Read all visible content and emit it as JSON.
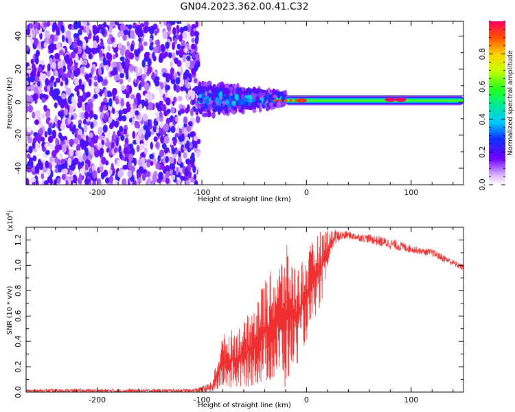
{
  "title": "GN04.2023.362.00.41.C32",
  "chart_data": [
    {
      "type": "heatmap",
      "name": "spectrogram",
      "xlabel": "Height of straight line (km)",
      "ylabel": "Frequency (Hz)",
      "xlim": [
        -268,
        150
      ],
      "ylim": [
        -50,
        49
      ],
      "xticks": [
        -200,
        -100,
        0,
        100
      ],
      "yticks": [
        -40,
        -20,
        0,
        20,
        40
      ],
      "xtick_labels": [
        "-200",
        "-100",
        "0",
        "100"
      ],
      "ytick_labels": [
        "-40",
        "-20",
        "0",
        "20",
        "40"
      ],
      "colorbar": {
        "label": "Normalized spectral amplitude",
        "range": [
          0,
          1
        ],
        "ticks": [
          0,
          0.2,
          0.4,
          0.6,
          0.8
        ],
        "tick_labels": [
          "0.0",
          "0.2",
          "0.4",
          "0.6",
          "0.8"
        ],
        "colormap": "rainbow"
      },
      "regions": [
        {
          "x": [
            -268,
            -103
          ],
          "freq": [
            -50,
            49
          ],
          "amplitude": [
            0.02,
            0.25
          ],
          "pattern": "broadband noise"
        },
        {
          "x": [
            -103,
            -20
          ],
          "freq": [
            -12,
            12
          ],
          "amplitude": [
            0.1,
            0.5
          ],
          "pattern": "narrowing band"
        },
        {
          "x": [
            -20,
            150
          ],
          "freq": [
            -2,
            3
          ],
          "amplitude": [
            0.4,
            1.0
          ],
          "pattern": "carrier line"
        }
      ],
      "peaks": [
        {
          "x": -5,
          "freq": 1,
          "amplitude": 0.95
        },
        {
          "x": 80,
          "freq": 1.5,
          "amplitude": 1.0
        },
        {
          "x": 90,
          "freq": 1.5,
          "amplitude": 1.0
        }
      ]
    },
    {
      "type": "line",
      "name": "snr",
      "xlabel": "Height of straight line (km)",
      "ylabel": "SNR (10 * v/v)",
      "ylabel_multiplier": "(x10",
      "ylabel_multiplier_exp": "4",
      "ylabel_multiplier_close": ")",
      "xlim": [
        -268,
        150
      ],
      "ylim": [
        0,
        1.3
      ],
      "xticks": [
        -200,
        -100,
        0,
        100
      ],
      "yticks": [
        0,
        0.2,
        0.4,
        0.6,
        0.8,
        1.0,
        1.2
      ],
      "xtick_labels": [
        "-200",
        "-100",
        "0",
        "100"
      ],
      "ytick_labels": [
        "0.0",
        "0.2",
        "0.4",
        "0.6",
        "0.8",
        "1.0",
        "1.2"
      ],
      "color": "#f03030",
      "x": [
        -268,
        -250,
        -200,
        -150,
        -110,
        -100,
        -90,
        -80,
        -70,
        -60,
        -50,
        -40,
        -30,
        -25,
        -20,
        -15,
        -10,
        -5,
        0,
        5,
        10,
        15,
        20,
        25,
        30,
        40,
        50,
        60,
        70,
        80,
        90,
        100,
        110,
        120,
        130,
        140,
        150
      ],
      "y": [
        0.01,
        0.01,
        0.01,
        0.01,
        0.01,
        0.02,
        0.04,
        0.15,
        0.22,
        0.25,
        0.3,
        0.36,
        0.45,
        0.55,
        0.58,
        0.62,
        0.68,
        0.75,
        0.82,
        0.95,
        1.05,
        1.12,
        1.18,
        1.21,
        1.23,
        1.24,
        1.22,
        1.21,
        1.19,
        1.17,
        1.15,
        1.13,
        1.11,
        1.1,
        1.06,
        1.02,
        0.98
      ],
      "envelope_max": [
        0.02,
        0.03,
        0.03,
        0.03,
        0.03,
        0.05,
        0.1,
        0.46,
        0.5,
        0.55,
        0.7,
        0.9,
        1.0,
        1.05,
        1.18,
        1.1,
        1.0,
        1.05,
        1.1,
        1.18,
        1.25,
        1.28,
        1.3,
        1.27,
        1.27,
        1.26,
        1.25,
        1.24,
        1.22,
        1.2,
        1.18,
        1.16,
        1.13,
        1.12,
        1.08,
        1.04,
        1.0
      ],
      "envelope_min": [
        0.0,
        0.0,
        0.0,
        0.0,
        0.0,
        0.0,
        0.01,
        0.02,
        0.02,
        0.03,
        0.05,
        0.06,
        0.08,
        0.1,
        0.0,
        0.15,
        0.2,
        0.3,
        0.4,
        0.5,
        0.62,
        0.7,
        0.95,
        1.1,
        1.18,
        1.2,
        1.19,
        1.17,
        1.14,
        1.12,
        1.1,
        1.1,
        1.08,
        1.06,
        1.02,
        0.99,
        0.95
      ]
    }
  ]
}
